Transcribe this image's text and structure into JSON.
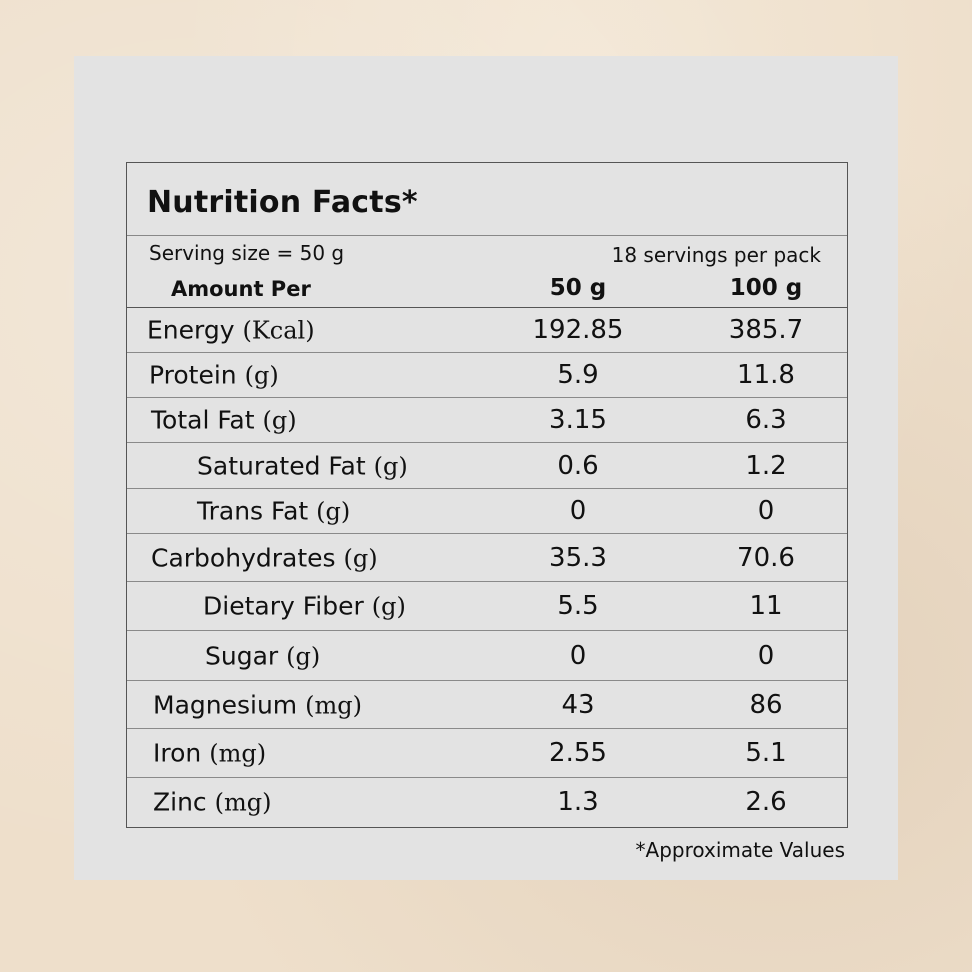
{
  "title": "Nutrition Facts*",
  "serving_size": "Serving size = 50 g",
  "servings_per_pack": "18 servings per pack",
  "amount_per": "Amount Per",
  "columns": [
    "50 g",
    "100 g"
  ],
  "rows": [
    {
      "name": "Energy",
      "unit": "(Kcal)",
      "v50": "192.85",
      "v100": "385.7"
    },
    {
      "name": "Protein",
      "unit": "(g)",
      "v50": "5.9",
      "v100": "11.8"
    },
    {
      "name": "Total Fat",
      "unit": "(g)",
      "v50": "3.15",
      "v100": "6.3"
    },
    {
      "name": "Saturated Fat",
      "unit": "(g)",
      "v50": "0.6",
      "v100": "1.2"
    },
    {
      "name": "Trans Fat",
      "unit": "(g)",
      "v50": "0",
      "v100": "0"
    },
    {
      "name": "Carbohydrates",
      "unit": "(g)",
      "v50": "35.3",
      "v100": "70.6"
    },
    {
      "name": "Dietary Fiber",
      "unit": "(g)",
      "v50": "5.5",
      "v100": "11"
    },
    {
      "name": "Sugar",
      "unit": "(g)",
      "v50": "0",
      "v100": "0"
    },
    {
      "name": "Magnesium",
      "unit": "(mg)",
      "v50": "43",
      "v100": "86"
    },
    {
      "name": "Iron",
      "unit": "(mg)",
      "v50": "2.55",
      "v100": "5.1"
    },
    {
      "name": "Zinc",
      "unit": "(mg)",
      "v50": "1.3",
      "v100": "2.6"
    }
  ],
  "footnote": "*Approximate Values"
}
